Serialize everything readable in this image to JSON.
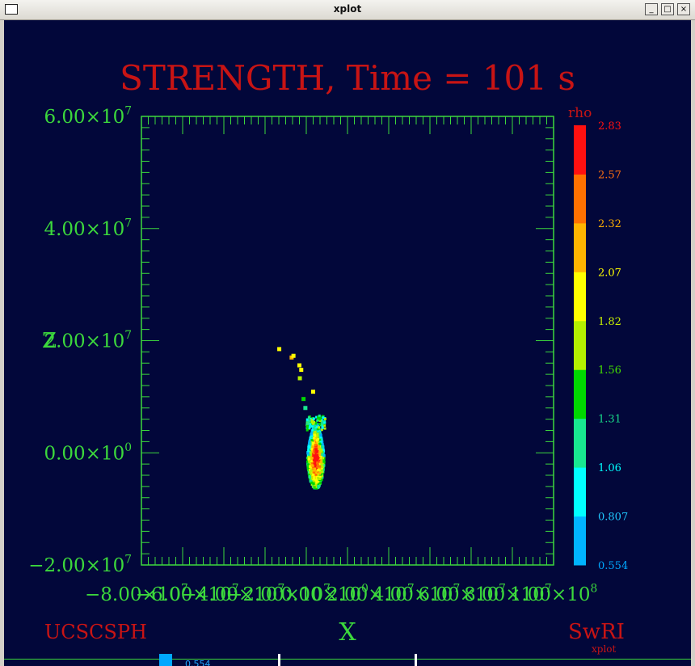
{
  "window": {
    "title": "xplot",
    "buttons": {
      "minimize": "_",
      "maximize": "□",
      "close": "×"
    }
  },
  "colors": {
    "background": "#02073a",
    "axis": "#3cd83c",
    "title": "#c81414",
    "label_red": "#c81414"
  },
  "chart_data": {
    "type": "scatter",
    "title": "STRENGTH, Time = 101 s",
    "xlabel": "X",
    "ylabel": "Z",
    "xlim": [
      -80000000,
      100000000
    ],
    "ylim": [
      -20000000,
      60000000
    ],
    "x_ticks": [
      {
        "value": -80000000,
        "mant": "−8.00×10",
        "exp": "7"
      },
      {
        "value": -60000000,
        "mant": "−6.00×10",
        "exp": "7"
      },
      {
        "value": -40000000,
        "mant": "−4.00×10",
        "exp": "7"
      },
      {
        "value": -20000000,
        "mant": "−2.00×10",
        "exp": "7"
      },
      {
        "value": 0,
        "mant": "0.00×10",
        "exp": "0"
      },
      {
        "value": 20000000,
        "mant": "2.00×10",
        "exp": "7"
      },
      {
        "value": 40000000,
        "mant": "4.00×10",
        "exp": "7"
      },
      {
        "value": 60000000,
        "mant": "6.00×10",
        "exp": "7"
      },
      {
        "value": 80000000,
        "mant": "8.00×10",
        "exp": "7"
      },
      {
        "value": 100000000,
        "mant": "1.00×10",
        "exp": "8"
      }
    ],
    "y_ticks": [
      {
        "value": 60000000,
        "mant": "6.00×10",
        "exp": "7"
      },
      {
        "value": 40000000,
        "mant": "4.00×10",
        "exp": "7"
      },
      {
        "value": 20000000,
        "mant": "2.00×10",
        "exp": "7"
      },
      {
        "value": 0,
        "mant": "0.00×10",
        "exp": "0"
      },
      {
        "value": -20000000,
        "mant": "−2.00×10",
        "exp": "7"
      }
    ],
    "colorbar": {
      "label": "rho",
      "min": 0.554,
      "max": 2.83,
      "ticks": [
        "2.83",
        "2.57",
        "2.32",
        "2.07",
        "1.82",
        "1.56",
        "1.31",
        "1.06",
        "0.807",
        "0.554"
      ],
      "tick_colors": [
        "#ff1010",
        "#ff7010",
        "#ffb000",
        "#ffff00",
        "#c8f000",
        "#44dd00",
        "#18d888",
        "#00ffff",
        "#20c8ff",
        "#00a8ff"
      ],
      "bands": [
        "#00b4ff",
        "#00ffff",
        "#18e890",
        "#00d800",
        "#b4f000",
        "#ffff00",
        "#ffb400",
        "#ff7000",
        "#ff1010"
      ]
    },
    "stray_points": [
      {
        "x": -19800000,
        "y": 18500000,
        "rho": 2.0
      },
      {
        "x": -14400000,
        "y": 17000000,
        "rho": 2.1
      },
      {
        "x": -13600000,
        "y": 17300000,
        "rho": 2.0
      },
      {
        "x": -11000000,
        "y": 15600000,
        "rho": 1.95
      },
      {
        "x": -10200000,
        "y": 14800000,
        "rho": 1.9
      },
      {
        "x": -10800000,
        "y": 13300000,
        "rho": 1.7
      },
      {
        "x": -5000000,
        "y": 10900000,
        "rho": 2.0
      },
      {
        "x": -9200000,
        "y": 9600000,
        "rho": 1.4
      },
      {
        "x": -8400000,
        "y": 8000000,
        "rho": 1.3
      }
    ],
    "blob": {
      "center": {
        "x": -3800000,
        "y": -600000
      },
      "rx": 3700000,
      "ry": 5800000,
      "rho_core": 2.83,
      "rho_edge": 0.9
    }
  },
  "footer": {
    "left": "UCSCSPH",
    "center": "X",
    "right": "SwRI",
    "right_sub": "xplot",
    "palette_value": "0.554"
  }
}
